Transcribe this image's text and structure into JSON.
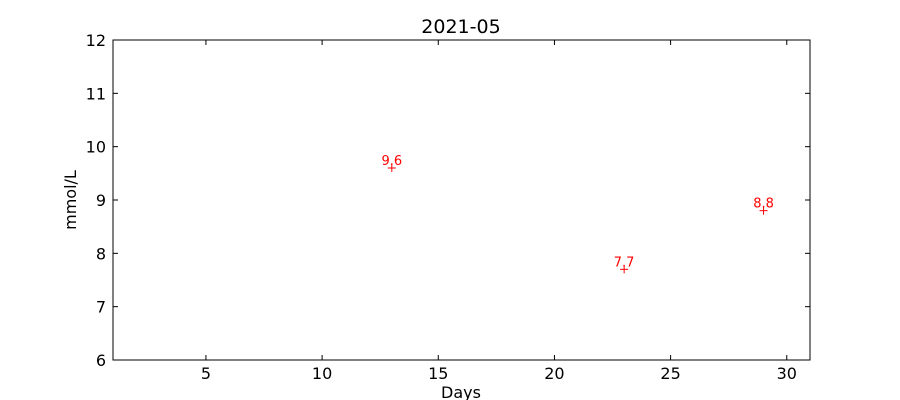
{
  "chart_data": {
    "type": "scatter",
    "title": "2021-05",
    "xlabel": "Days",
    "ylabel": "mmol/L",
    "xlim": [
      1,
      31
    ],
    "ylim": [
      6,
      12
    ],
    "xticks": [
      5,
      10,
      15,
      20,
      25,
      30
    ],
    "yticks": [
      6,
      7,
      8,
      9,
      10,
      11,
      12
    ],
    "grid": false,
    "marker": "+",
    "color": "#ff0000",
    "series": [
      {
        "points": [
          {
            "x": 13,
            "y": 9.6,
            "label": "9.6"
          },
          {
            "x": 23,
            "y": 7.7,
            "label": "7.7"
          },
          {
            "x": 29,
            "y": 8.8,
            "label": "8.8"
          }
        ]
      }
    ]
  }
}
